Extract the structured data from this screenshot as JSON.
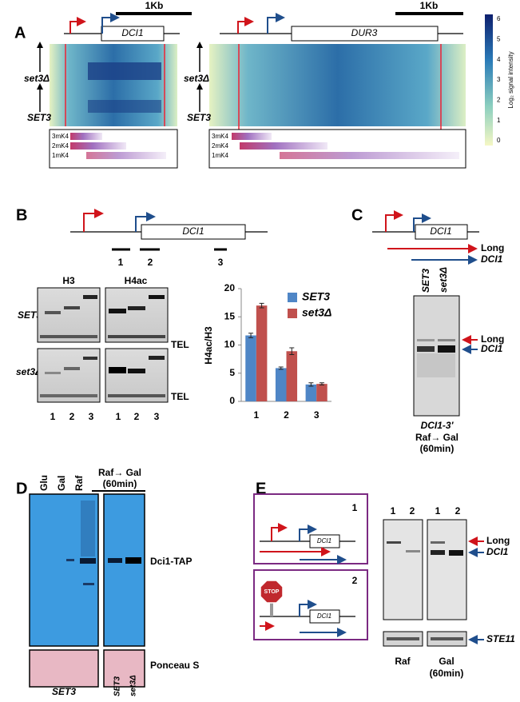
{
  "panels": [
    "A",
    "B",
    "C",
    "D",
    "E"
  ],
  "panel_a": {
    "left": {
      "scale": "1Kb",
      "gene": "DCI1",
      "mutant": "set3Δ",
      "wildtype": "SET3",
      "tracks": [
        "3mK4",
        "2mK4",
        "1mK4"
      ]
    },
    "right": {
      "scale": "1Kb",
      "gene": "DUR3",
      "mutant": "set3Δ",
      "wildtype": "SET3",
      "tracks": [
        "3mK4",
        "2mK4",
        "1mK4"
      ]
    },
    "colorbar": {
      "label": "Log₂ signal intensity",
      "ticks": [
        6,
        5,
        4,
        3,
        2,
        1,
        0
      ]
    }
  },
  "panel_b": {
    "gene": "DCI1",
    "amplicons": [
      "1",
      "2",
      "3"
    ],
    "antibodies": [
      "H3",
      "H4ac"
    ],
    "rows": [
      "SET3",
      "set3Δ"
    ],
    "control": [
      "TEL",
      "TEL"
    ],
    "lanes": [
      "1",
      "2",
      "3",
      "1",
      "2",
      "3"
    ]
  },
  "chart_data": {
    "type": "bar",
    "y_label": "H4ac/H3",
    "categories": [
      "1",
      "2",
      "3"
    ],
    "series": [
      {
        "name": "SET3",
        "color": "#4f86c6",
        "values": [
          11.7,
          5.9,
          3.0
        ],
        "errors": [
          0.4,
          0.2,
          0.3
        ]
      },
      {
        "name": "set3Δ",
        "color": "#c0504d",
        "values": [
          17.0,
          8.9,
          3.1
        ],
        "errors": [
          0.4,
          0.6,
          0.2
        ]
      }
    ],
    "ylim": [
      0,
      20
    ],
    "yticks": [
      0,
      5,
      10,
      15,
      20
    ],
    "grid": false
  },
  "panel_c": {
    "gene": "DCI1",
    "transcripts": [
      "Long",
      "DCI1"
    ],
    "lanes": [
      "SET3",
      "set3Δ"
    ],
    "bands": [
      "Long",
      "DCI1"
    ],
    "caption": [
      "DCI1-3'",
      "Raf→ Gal",
      "(60min)"
    ]
  },
  "panel_d": {
    "lanes": [
      "Glu",
      "Gal",
      "Raf"
    ],
    "induction": [
      "Raf→ Gal",
      "(60min)"
    ],
    "protein": "Dci1-TAP",
    "loading": "Ponceau S",
    "strains": [
      "SET3",
      "SET3",
      "set3Δ"
    ]
  },
  "panel_e": {
    "constructs": [
      "1",
      "2"
    ],
    "stop": "STOP",
    "gene": [
      "DCI1",
      "DCI1"
    ],
    "lanes": [
      "1",
      "2",
      "1",
      "2"
    ],
    "bands": [
      "Long",
      "DCI1",
      "STE11"
    ],
    "conditions": [
      "Raf",
      "Gal",
      "(60min)"
    ]
  }
}
